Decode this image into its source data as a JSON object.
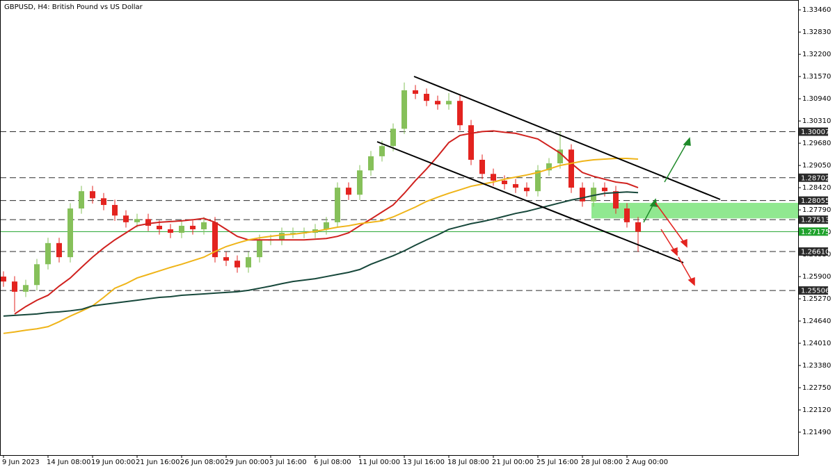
{
  "chart_data": {
    "type": "candlestick",
    "title": "GBPUSD, H4:  British Pound vs US Dollar",
    "categories": [
      "9 Jun 2023",
      null,
      null,
      null,
      "14 Jun 08:00",
      null,
      null,
      null,
      "19 Jun 00:00",
      null,
      null,
      null,
      "21 Jun 16:00",
      null,
      null,
      null,
      "26 Jun 08:00",
      null,
      null,
      null,
      "29 Jun 00:00",
      null,
      null,
      null,
      "3 Jul 16:00",
      null,
      null,
      null,
      "6 Jul 08:00",
      null,
      null,
      null,
      "11 Jul 00:00",
      null,
      null,
      null,
      "13 Jul 16:00",
      null,
      null,
      null,
      "18 Jul 08:00",
      null,
      null,
      null,
      "21 Jul 00:00",
      null,
      null,
      null,
      "25 Jul 16:00",
      null,
      null,
      null,
      "28 Jul 08:00",
      null,
      null,
      null,
      "2 Aug 00:00",
      null
    ],
    "open": [
      1.259,
      1.2576,
      1.2547,
      1.2566,
      1.2625,
      1.2685,
      1.2645,
      1.2783,
      1.2832,
      1.2812,
      1.2793,
      1.2763,
      1.2744,
      1.2753,
      1.2734,
      1.2724,
      1.2714,
      1.2734,
      1.2724,
      1.2744,
      1.2645,
      1.2635,
      1.2616,
      1.2645,
      1.2694,
      1.2694,
      1.2714,
      1.2714,
      1.2714,
      1.2724,
      1.2744,
      1.2842,
      1.2822,
      1.2891,
      1.2931,
      1.296,
      1.3009,
      1.3118,
      1.3108,
      1.3088,
      1.3078,
      1.3088,
      1.3019,
      1.2921,
      1.2881,
      1.2862,
      1.2852,
      1.2842,
      1.2832,
      1.2891,
      1.2911,
      1.295,
      1.2842,
      1.2803,
      1.2842,
      1.2832,
      1.2783,
      1.2744
    ],
    "high": [
      1.2605,
      1.2591,
      1.2581,
      1.264,
      1.27,
      1.27,
      1.2798,
      1.2847,
      1.2847,
      1.2827,
      1.2808,
      1.2778,
      1.2768,
      1.2768,
      1.2749,
      1.2739,
      1.2749,
      1.2749,
      1.2759,
      1.2759,
      1.266,
      1.265,
      1.266,
      1.2709,
      1.2709,
      1.2729,
      1.2729,
      1.2729,
      1.2739,
      1.2759,
      1.2857,
      1.2857,
      1.2906,
      1.2946,
      1.2975,
      1.3024,
      1.314,
      1.3133,
      1.3123,
      1.3103,
      1.311,
      1.3103,
      1.3034,
      1.2936,
      1.2896,
      1.2877,
      1.2867,
      1.2857,
      1.2906,
      1.2926,
      1.3,
      1.2965,
      1.2857,
      1.2857,
      1.2857,
      1.2847,
      1.2798,
      1.2759
    ],
    "low": [
      1.2561,
      1.249,
      1.2532,
      1.2551,
      1.261,
      1.263,
      1.263,
      1.2768,
      1.2797,
      1.2778,
      1.2748,
      1.2729,
      1.2729,
      1.2719,
      1.2709,
      1.2699,
      1.2699,
      1.2709,
      1.2709,
      1.263,
      1.262,
      1.2601,
      1.2601,
      1.263,
      1.2679,
      1.2679,
      1.2699,
      1.2699,
      1.2699,
      1.2709,
      1.2729,
      1.2807,
      1.2807,
      1.2876,
      1.2916,
      1.2945,
      1.2994,
      1.3093,
      1.3073,
      1.3063,
      1.3063,
      1.3004,
      1.2906,
      1.2866,
      1.2847,
      1.2837,
      1.2827,
      1.2817,
      1.2817,
      1.2876,
      1.2896,
      1.2827,
      1.2788,
      1.2788,
      1.2817,
      1.2768,
      1.2729,
      1.266
    ],
    "close": [
      1.2576,
      1.2547,
      1.2566,
      1.2625,
      1.2685,
      1.2645,
      1.2783,
      1.2832,
      1.2812,
      1.2793,
      1.2763,
      1.2744,
      1.2753,
      1.2734,
      1.2724,
      1.2714,
      1.2734,
      1.2724,
      1.2744,
      1.2645,
      1.2635,
      1.2616,
      1.2645,
      1.2694,
      1.2694,
      1.2714,
      1.2714,
      1.2714,
      1.2724,
      1.2744,
      1.2842,
      1.2822,
      1.2891,
      1.2931,
      1.296,
      1.3009,
      1.3118,
      1.3108,
      1.3088,
      1.3078,
      1.3088,
      1.3019,
      1.2921,
      1.2881,
      1.2862,
      1.2852,
      1.2842,
      1.2832,
      1.2891,
      1.2911,
      1.295,
      1.2842,
      1.2803,
      1.2842,
      1.2832,
      1.2783,
      1.2744,
      1.2717
    ],
    "up_color": "#86c05a",
    "down_color": "#e3231f",
    "lines": [
      {
        "color": "#d0211e",
        "values": [
          null,
          1.2484,
          1.2505,
          1.2523,
          1.2537,
          1.2563,
          1.2586,
          1.2616,
          1.2645,
          1.2671,
          1.2694,
          1.2714,
          1.2734,
          1.274,
          1.2744,
          1.2746,
          1.2748,
          1.2751,
          1.2755,
          1.2744,
          1.2724,
          1.2704,
          1.2694,
          1.2694,
          1.2694,
          1.2694,
          1.2694,
          1.2694,
          1.2696,
          1.2698,
          1.2704,
          1.2714,
          1.2734,
          1.2753,
          1.2773,
          1.2793,
          1.2826,
          1.2862,
          1.2895,
          1.2931,
          1.297,
          1.299,
          1.2996,
          1.3001,
          1.3003,
          1.2999,
          1.2996,
          1.2988,
          1.298,
          1.296,
          1.294,
          1.2911,
          1.2885,
          1.2874,
          1.2866,
          1.2858,
          1.2854,
          1.2842
        ]
      },
      {
        "color": "#efb418",
        "values": [
          1.2429,
          1.2433,
          1.2438,
          1.2442,
          1.2448,
          1.2462,
          1.2478,
          1.2492,
          1.2507,
          1.2531,
          1.2557,
          1.257,
          1.2586,
          1.2596,
          1.2606,
          1.2616,
          1.2625,
          1.2635,
          1.2645,
          1.2661,
          1.2675,
          1.2685,
          1.2694,
          1.27,
          1.2704,
          1.2708,
          1.271,
          1.2714,
          1.2718,
          1.2724,
          1.273,
          1.2734,
          1.274,
          1.2744,
          1.2748,
          1.2759,
          1.2773,
          1.2787,
          1.2803,
          1.2815,
          1.2826,
          1.2836,
          1.2846,
          1.2852,
          1.2858,
          1.2866,
          1.2872,
          1.2878,
          1.2885,
          1.2895,
          1.2905,
          1.2911,
          1.2917,
          1.2921,
          1.2923,
          1.2925,
          1.2925,
          1.2923
        ]
      },
      {
        "color": "#16473a",
        "values": [
          1.2478,
          1.248,
          1.2482,
          1.2484,
          1.2488,
          1.249,
          1.2493,
          1.2497,
          1.2507,
          1.2511,
          1.2515,
          1.2519,
          1.2523,
          1.2527,
          1.2531,
          1.2533,
          1.2537,
          1.2539,
          1.2541,
          1.2543,
          1.2545,
          1.2547,
          1.2551,
          1.2557,
          1.2563,
          1.257,
          1.2576,
          1.258,
          1.2584,
          1.259,
          1.2596,
          1.2602,
          1.261,
          1.2625,
          1.2637,
          1.2649,
          1.2663,
          1.2679,
          1.2694,
          1.2708,
          1.2724,
          1.2732,
          1.274,
          1.2746,
          1.2753,
          1.2761,
          1.2769,
          1.2775,
          1.2783,
          1.2791,
          1.2799,
          1.2807,
          1.2813,
          1.282,
          1.2826,
          1.2828,
          1.283,
          1.2828
        ]
      }
    ],
    "levels": [
      {
        "value": 1.30007,
        "color": "#2b2b2b",
        "dashed": true
      },
      {
        "value": 1.28702,
        "color": "#2b2b2b",
        "dashed": true
      },
      {
        "value": 1.28055,
        "color": "#2b2b2b",
        "dashed": true
      },
      {
        "value": 1.27513,
        "color": "#2b2b2b",
        "dashed": true
      },
      {
        "value": 1.27175,
        "color": "#1fa22c",
        "dashed": false
      },
      {
        "value": 1.2661,
        "label": "1.26610",
        "color": "#2b2b2b",
        "dashed": true
      },
      {
        "value": 1.25506,
        "color": "#2b2b2b",
        "dashed": true
      }
    ],
    "zone": {
      "low": 1.2755,
      "high": 1.2799,
      "color": "#90e890"
    },
    "ylim": [
      1.2084,
      1.3368
    ],
    "yticks": [
      {
        "value": 1.3346,
        "label": "1.33460"
      },
      {
        "value": 1.3283,
        "label": "1.32830"
      },
      {
        "value": 1.322,
        "label": "1.32200"
      },
      {
        "value": 1.3157,
        "label": "1.31570"
      },
      {
        "value": 1.3094,
        "label": "1.30940"
      },
      {
        "value": 1.3031,
        "label": "1.30310"
      },
      {
        "value": 1.2968,
        "label": "1.29680"
      },
      {
        "value": 1.2905,
        "label": "1.29050"
      },
      {
        "value": 1.2842,
        "label": "1.28420"
      },
      {
        "value": 1.2779,
        "label": "1.27790"
      },
      {
        "value": 1.2716,
        "label": "1.27160"
      },
      {
        "value": 1.2653,
        "label": "1.26530"
      },
      {
        "value": 1.259,
        "label": "1.25900"
      },
      {
        "value": 1.2527,
        "label": "1.25270"
      },
      {
        "value": 1.2464,
        "label": "1.24640"
      },
      {
        "value": 1.2401,
        "label": "1.24010"
      },
      {
        "value": 1.2338,
        "label": "1.23380"
      },
      {
        "value": 1.2275,
        "label": "1.22750"
      },
      {
        "value": 1.2212,
        "label": "1.22120"
      },
      {
        "value": 1.2149,
        "label": "1.21490"
      }
    ]
  }
}
